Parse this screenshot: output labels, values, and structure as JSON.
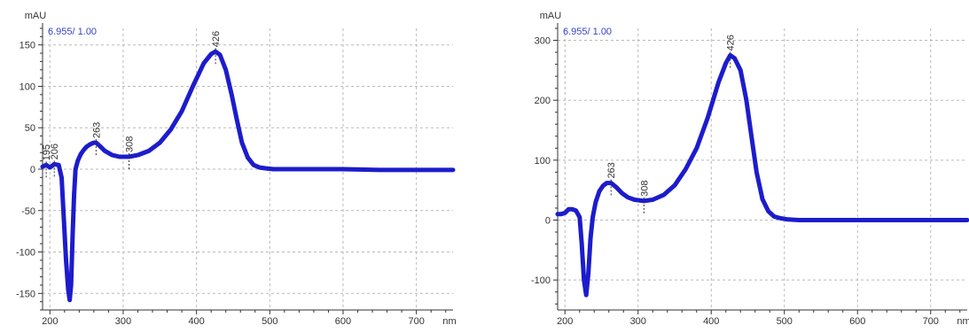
{
  "chart_data": [
    {
      "type": "line",
      "ylabel": "mAU",
      "xlabel": "nm",
      "info": "6.955/ 1.00",
      "xlim": [
        190,
        750
      ],
      "ylim": [
        -170,
        170
      ],
      "xticks": [
        200,
        300,
        400,
        500,
        600,
        700
      ],
      "yticks": [
        -150,
        -100,
        -50,
        0,
        50,
        100,
        150
      ],
      "grid": true,
      "series_color": "#1c1ccc",
      "info_color": "#3344cc",
      "peaks": [
        {
          "x": 195,
          "y": 5,
          "label": "195"
        },
        {
          "x": 206,
          "y": 6,
          "label": "206"
        },
        {
          "x": 263,
          "y": 32,
          "label": "263"
        },
        {
          "x": 308,
          "y": 15,
          "label": "308"
        },
        {
          "x": 426,
          "y": 142,
          "label": "426"
        }
      ],
      "series": [
        {
          "x": [
            190,
            195,
            200,
            206,
            212,
            216,
            219,
            222,
            225,
            227,
            229,
            231,
            233,
            235,
            238,
            242,
            246,
            250,
            255,
            260,
            263,
            268,
            275,
            285,
            295,
            308,
            320,
            335,
            350,
            365,
            380,
            395,
            410,
            420,
            426,
            432,
            440,
            448,
            455,
            462,
            470,
            478,
            486,
            495,
            505,
            520,
            550,
            600,
            650,
            700,
            750
          ],
          "y": [
            3,
            5,
            2,
            6,
            5,
            -10,
            -60,
            -110,
            -145,
            -158,
            -140,
            -80,
            -30,
            0,
            10,
            18,
            23,
            27,
            30,
            32,
            32,
            28,
            22,
            17,
            15,
            15,
            17,
            22,
            32,
            48,
            70,
            100,
            128,
            139,
            142,
            138,
            120,
            90,
            60,
            32,
            14,
            5,
            2,
            1,
            0,
            0,
            0,
            0,
            -1,
            -1,
            -1
          ]
        }
      ]
    },
    {
      "type": "line",
      "ylabel": "mAU",
      "xlabel": "nm",
      "info": "6.955/ 1.00",
      "xlim": [
        190,
        750
      ],
      "ylim": [
        -150,
        320
      ],
      "xticks": [
        200,
        300,
        400,
        500,
        600,
        700
      ],
      "yticks": [
        -100,
        0,
        100,
        200,
        300
      ],
      "grid": true,
      "series_color": "#1c1ccc",
      "info_color": "#3344cc",
      "peaks": [
        {
          "x": 263,
          "y": 62,
          "label": "263"
        },
        {
          "x": 308,
          "y": 32,
          "label": "308"
        },
        {
          "x": 426,
          "y": 275,
          "label": "426"
        }
      ],
      "series": [
        {
          "x": [
            190,
            195,
            200,
            205,
            210,
            215,
            220,
            223,
            226,
            229,
            232,
            235,
            238,
            242,
            247,
            252,
            257,
            263,
            270,
            278,
            286,
            295,
            308,
            320,
            335,
            350,
            365,
            380,
            395,
            410,
            420,
            426,
            432,
            440,
            448,
            455,
            462,
            470,
            478,
            486,
            495,
            505,
            520,
            550,
            600,
            650,
            700,
            750
          ],
          "y": [
            10,
            10,
            12,
            18,
            18,
            16,
            5,
            -40,
            -100,
            -125,
            -90,
            -30,
            5,
            30,
            48,
            57,
            62,
            62,
            55,
            45,
            38,
            34,
            32,
            34,
            42,
            58,
            85,
            120,
            170,
            230,
            262,
            275,
            270,
            250,
            200,
            140,
            80,
            35,
            15,
            6,
            3,
            1,
            0,
            0,
            0,
            0,
            0,
            0
          ]
        }
      ]
    }
  ]
}
